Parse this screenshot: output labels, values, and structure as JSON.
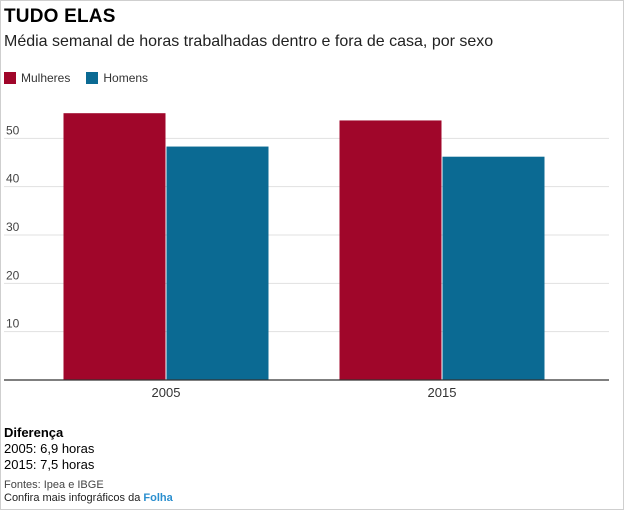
{
  "title": "TUDO ELAS",
  "subtitle": "Média semanal de horas trabalhadas dentro e fora de casa, por sexo",
  "colors": {
    "mulheres": "#a0062a",
    "homens": "#0b6a93"
  },
  "chart_data": {
    "type": "bar",
    "categories": [
      "2005",
      "2015"
    ],
    "series": [
      {
        "name": "Mulheres",
        "values": [
          55.2,
          53.7
        ]
      },
      {
        "name": "Homens",
        "values": [
          48.3,
          46.2
        ]
      }
    ],
    "title": "",
    "xlabel": "",
    "ylabel": "",
    "ylim": [
      0,
      60
    ],
    "yticks": [
      "10",
      "20",
      "30",
      "40",
      "50"
    ],
    "grid": true,
    "legend": "top-left"
  },
  "footer": {
    "diff_title": "Diferença",
    "diff_2005": "2005: 6,9 horas",
    "diff_2015": "2015: 7,5 horas",
    "sources": "Fontes: Ipea e IBGE",
    "credit_prefix": "Confira mais infográficos da ",
    "credit_brand": "Folha"
  }
}
